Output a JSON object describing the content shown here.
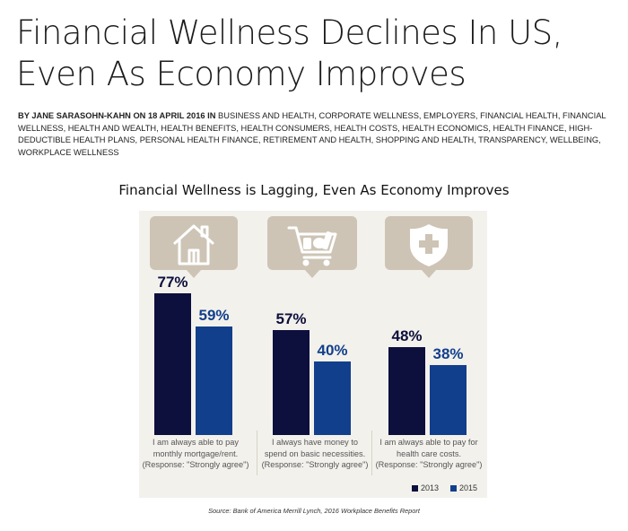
{
  "article": {
    "headline_line1": "Financial Wellness Declines In US,",
    "headline_line2": "Even As Economy Improves",
    "byline_prefix": "BY JANE SARASOHN-KAHN ON 18 APRIL 2016 IN",
    "categories_text": "BUSINESS AND HEALTH, CORPORATE WELLNESS, EMPLOYERS, FINANCIAL HEALTH, FINANCIAL WELLNESS, HEALTH AND WEALTH, HEALTH BENEFITS, HEALTH CONSUMERS, HEALTH COSTS, HEALTH ECONOMICS, HEALTH FINANCE, HIGH-DEDUCTIBLE HEALTH PLANS, PERSONAL HEALTH FINANCE, RETIREMENT AND HEALTH, SHOPPING AND HEALTH, TRANSPARENCY, WELLBEING, WORKPLACE WELLNESS"
  },
  "chart_data": {
    "type": "bar",
    "title": "Financial Wellness is Lagging, Even As Economy Improves",
    "categories": [
      "I am always able to pay monthly mortgage/rent. (Response: \"Strongly agree\")",
      "I always have money to spend on basic necessities. (Response: \"Strongly agree\")",
      "I am always able to pay for health care costs. (Response: \"Strongly agree\")"
    ],
    "category_lines": [
      [
        "I am always able to pay",
        "monthly mortgage/rent.",
        "(Response: \"Strongly agree\")"
      ],
      [
        "I always have money to",
        "spend on basic necessities.",
        "(Response: \"Strongly agree\")"
      ],
      [
        "I am always able to pay for",
        "health care costs.",
        "(Response: \"Strongly agree\")"
      ]
    ],
    "series": [
      {
        "name": "2013",
        "values": [
          77,
          57,
          48
        ],
        "labels": [
          "77%",
          "57%",
          "48%"
        ],
        "color": "#0d0f3d"
      },
      {
        "name": "2015",
        "values": [
          59,
          40,
          38
        ],
        "labels": [
          "59%",
          "40%",
          "38%"
        ],
        "color": "#123f8c"
      }
    ],
    "ylim": [
      0,
      100
    ],
    "legend_position": "bottom-right",
    "icons": [
      "house-icon",
      "shopping-cart-icon",
      "shield-plus-icon"
    ],
    "source": "Source: Bank of America Merrill Lynch, 2016 Workplace Benefits Report"
  }
}
